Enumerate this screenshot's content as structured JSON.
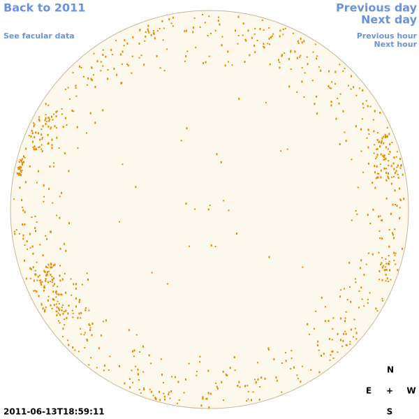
{
  "links": {
    "back": "Back to 2011",
    "facular": "See facular data",
    "previous_day": "Previous day",
    "next_day": "Next day",
    "previous_hour": "Previous hour",
    "next_hour": "Next hour"
  },
  "timestamp": "2011-06-13T18:59:11",
  "compass": {
    "north": "N",
    "east": "E",
    "center": "+",
    "west": "W",
    "south": "S"
  }
}
